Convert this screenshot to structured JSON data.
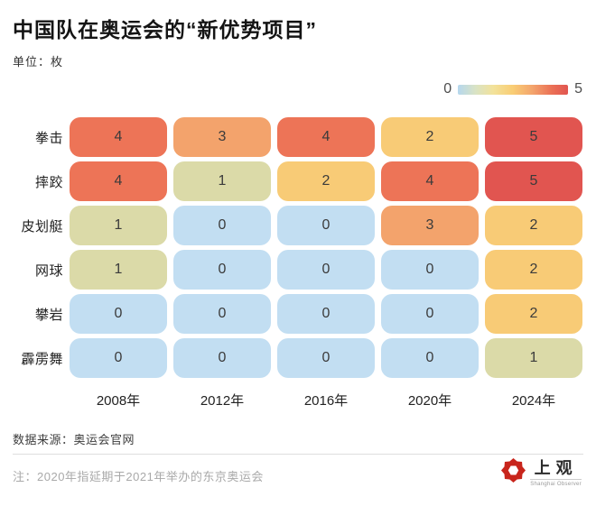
{
  "title": "中国队在奥运会的“新优势项目”",
  "subtitle": "单位：枚",
  "legend": {
    "min": "0",
    "max": "5"
  },
  "chart_data": {
    "type": "heatmap",
    "title": "中国队在奥运会的“新优势项目”",
    "unit_label": "单位：枚",
    "rows": [
      "拳击",
      "摔跤",
      "皮划艇",
      "网球",
      "攀岩",
      "霹雳舞"
    ],
    "columns": [
      "2008年",
      "2012年",
      "2016年",
      "2020年",
      "2024年"
    ],
    "values": [
      [
        4,
        3,
        4,
        2,
        5
      ],
      [
        4,
        1,
        2,
        4,
        5
      ],
      [
        1,
        0,
        0,
        3,
        2
      ],
      [
        1,
        0,
        0,
        0,
        2
      ],
      [
        0,
        0,
        0,
        0,
        2
      ],
      [
        0,
        0,
        0,
        0,
        1
      ]
    ],
    "color_scale": {
      "min": 0,
      "max": 5,
      "legend_position": "top-right",
      "colors": {
        "0": "#c2def2",
        "1": "#dbdaa8",
        "2": "#f8cb76",
        "3": "#f3a36c",
        "4": "#ed7457",
        "5": "#e15550"
      }
    }
  },
  "footer": {
    "source": "数据来源：奥运会官网",
    "note": "注：2020年指延期于2021年举办的东京奥运会"
  },
  "logo": {
    "name": "上观",
    "subtitle": "Shanghai Observer",
    "accent_color": "#c8251c"
  }
}
